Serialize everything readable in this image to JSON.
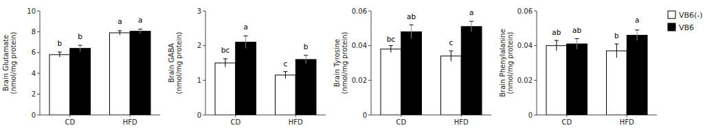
{
  "chart_data": [
    {
      "type": "bar",
      "ylabel": "Brain Glutamate\n(nmol/mg protein)",
      "categories": [
        "CD",
        "HFD"
      ],
      "ylim": [
        0,
        10
      ],
      "yticks": [
        0,
        2,
        4,
        6,
        8,
        10
      ],
      "series": [
        {
          "name": "VB6(-)",
          "color": "white",
          "values": [
            5.8,
            7.9
          ],
          "errors": [
            0.25,
            0.2
          ],
          "labels": [
            "b",
            "a"
          ],
          "label_y": [
            6.5,
            8.6
          ]
        },
        {
          "name": "VB6",
          "color": "black",
          "values": [
            6.4,
            8.05
          ],
          "errors": [
            0.3,
            0.2
          ],
          "labels": [
            "b",
            "a"
          ],
          "label_y": [
            7.2,
            8.75
          ]
        }
      ]
    },
    {
      "type": "bar",
      "ylabel": "Brain GABA\n(nmol/mg protein)",
      "categories": [
        "CD",
        "HFD"
      ],
      "ylim": [
        0,
        3
      ],
      "yticks": [
        0,
        1,
        2,
        3
      ],
      "series": [
        {
          "name": "VB6(-)",
          "color": "white",
          "values": [
            1.5,
            1.15
          ],
          "errors": [
            0.12,
            0.1
          ],
          "labels": [
            "bc",
            "c"
          ],
          "label_y": [
            1.75,
            1.37
          ]
        },
        {
          "name": "VB6",
          "color": "black",
          "values": [
            2.1,
            1.6
          ],
          "errors": [
            0.18,
            0.12
          ],
          "labels": [
            "a",
            "b"
          ],
          "label_y": [
            2.42,
            1.85
          ]
        }
      ]
    },
    {
      "type": "bar",
      "ylabel": "Brain Tyrosine\n(nmol/mg protein)",
      "categories": [
        "CD",
        "HFD"
      ],
      "ylim": [
        0,
        0.06
      ],
      "yticks": [
        0,
        0.02,
        0.04,
        0.06
      ],
      "series": [
        {
          "name": "VB6(-)",
          "color": "white",
          "values": [
            0.038,
            0.034
          ],
          "errors": [
            0.002,
            0.003
          ],
          "labels": [
            "bc",
            "c"
          ],
          "label_y": [
            0.0415,
            0.0395
          ]
        },
        {
          "name": "VB6",
          "color": "black",
          "values": [
            0.048,
            0.051
          ],
          "errors": [
            0.004,
            0.003
          ],
          "labels": [
            "ab",
            "a"
          ],
          "label_y": [
            0.0545,
            0.057
          ]
        }
      ]
    },
    {
      "type": "bar",
      "ylabel": "Brain Phenylalanine\n(nmol/mg protein)",
      "categories": [
        "CD",
        "HFD"
      ],
      "ylim": [
        0,
        0.06
      ],
      "yticks": [
        0,
        0.02,
        0.04,
        0.06
      ],
      "legend": "right",
      "series": [
        {
          "name": "VB6(-)",
          "color": "white",
          "values": [
            0.04,
            0.037
          ],
          "errors": [
            0.003,
            0.004
          ],
          "labels": [
            "ab",
            "b"
          ],
          "label_y": [
            0.0455,
            0.0435
          ]
        },
        {
          "name": "VB6",
          "color": "black",
          "values": [
            0.041,
            0.046
          ],
          "errors": [
            0.003,
            0.003
          ],
          "labels": [
            "ab",
            "a"
          ],
          "label_y": [
            0.0465,
            0.0525
          ]
        }
      ]
    }
  ]
}
